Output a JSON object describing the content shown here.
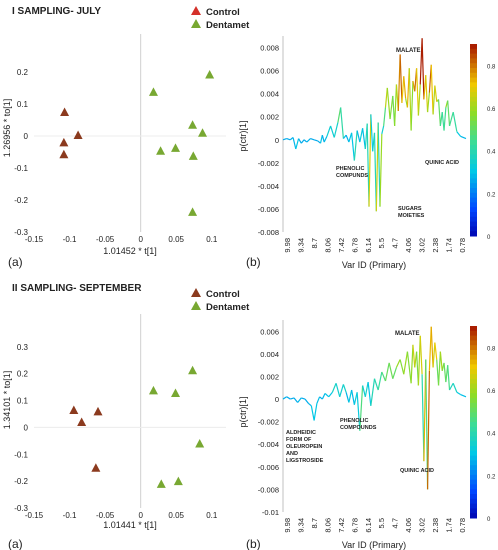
{
  "chart_data": [
    {
      "panel": "I",
      "type": "scatter",
      "title": "I SAMPLING- JULY",
      "xlabel": "1.01452 * t[1]",
      "ylabel": "1.26956 * to[1]",
      "xlim": [
        -0.15,
        0.12
      ],
      "ylim": [
        -0.3,
        0.3
      ],
      "xticks": [
        "-0.15",
        "-0.1",
        "-0.05",
        "0",
        "0.05",
        "0.1"
      ],
      "yticks": [
        "0.2",
        "0.1",
        "0",
        "-0.1",
        "-0.2",
        "-0.3"
      ],
      "panel_label": "(a)",
      "legend": [
        "Control",
        "Dentamet"
      ],
      "series": [
        {
          "name": "Control",
          "color": "#8B3A1E",
          "points": [
            [
              -0.107,
              0.075
            ],
            [
              -0.088,
              0.003
            ],
            [
              -0.108,
              -0.02
            ],
            [
              -0.108,
              -0.057
            ]
          ]
        },
        {
          "name": "Dentamet",
          "color": "#78A832",
          "points": [
            [
              0.018,
              0.138
            ],
            [
              0.097,
              0.192
            ],
            [
              0.073,
              0.035
            ],
            [
              0.049,
              -0.037
            ],
            [
              0.028,
              -0.046
            ],
            [
              0.074,
              -0.062
            ],
            [
              0.087,
              0.01
            ],
            [
              0.073,
              -0.237
            ]
          ]
        }
      ]
    },
    {
      "panel": "I",
      "type": "line",
      "xlabel": "Var ID (Primary)",
      "ylabel": "p(ctr)[1]",
      "xticks": [
        "9.98",
        "9.34",
        "8.7",
        "8.06",
        "7.42",
        "6.78",
        "6.14",
        "5.5",
        "4.7",
        "4.06",
        "3.02",
        "2.38",
        "1.74",
        "0.78"
      ],
      "yticks": [
        "0.008",
        "0.006",
        "0.004",
        "0.002",
        "0",
        "-0.002",
        "-0.004",
        "-0.006",
        "-0.008"
      ],
      "ylim": [
        -0.008,
        0.009
      ],
      "colorbar_ticks": [
        "0.8",
        "0.6",
        "0.4",
        "0.2",
        "0"
      ],
      "panel_label": "(b)",
      "annotations": [
        "MALATE",
        "PHENOLIC COMPUNDS",
        "SUGARS MOIETIES",
        "QUINIC ACID"
      ],
      "x": [
        0,
        0.02,
        0.04,
        0.055,
        0.07,
        0.085,
        0.1,
        0.115,
        0.13,
        0.15,
        0.17,
        0.19,
        0.205,
        0.215,
        0.225,
        0.24,
        0.26,
        0.28,
        0.3,
        0.315,
        0.33,
        0.345,
        0.36,
        0.375,
        0.39,
        0.405,
        0.42,
        0.435,
        0.45,
        0.46,
        0.47,
        0.48,
        0.49,
        0.5,
        0.51,
        0.52,
        0.53,
        0.54,
        0.55,
        0.56,
        0.57,
        0.585,
        0.6,
        0.61,
        0.62,
        0.63,
        0.64,
        0.65,
        0.66,
        0.67,
        0.68,
        0.69,
        0.7,
        0.71,
        0.72,
        0.73,
        0.74,
        0.75,
        0.76,
        0.77,
        0.78,
        0.79,
        0.8,
        0.81,
        0.82,
        0.83,
        0.84,
        0.85,
        0.86,
        0.87,
        0.88,
        0.89,
        0.9,
        0.91,
        0.93,
        0.95,
        0.97,
        1.0
      ],
      "values": [
        0,
        0.0001,
        0,
        0.0002,
        -0.0008,
        0.0001,
        -0.0003,
        0,
        -0.0002,
        0.0001,
        0,
        -0.0001,
        -0.0003,
        0.0004,
        -0.0002,
        0.0003,
        0.0012,
        0.0002,
        0.0015,
        0.0028,
        0.0001,
        0.0004,
        -0.0002,
        0.0006,
        -0.0018,
        0.0008,
        -0.0002,
        0.001,
        -0.0008,
        0.0014,
        -0.0058,
        0.0022,
        -0.001,
        0.0006,
        -0.0062,
        0.0015,
        -0.0058,
        0.0005,
        0.0012,
        0.0028,
        0.0045,
        0.0018,
        0.0038,
        0.0012,
        0.0048,
        0.0025,
        0.0074,
        0.0032,
        0.0055,
        0.0036,
        0.0028,
        0.0062,
        0.0008,
        0.0051,
        0.0042,
        0.0062,
        0.0021,
        0.0048,
        0.0088,
        0.0035,
        0.0056,
        0.0024,
        0.0041,
        0.0065,
        0.0022,
        0.0047,
        0.0033,
        0.0035,
        0.0012,
        0.0024,
        0.0008,
        0.0028,
        0.0034,
        0.0012,
        0.0024,
        0.0007,
        0.0003,
        0.0001
      ]
    },
    {
      "panel": "II",
      "type": "scatter",
      "title": "II SAMPLING- SEPTEMBER",
      "xlabel": "1.01441 * t[1]",
      "ylabel": "1.34101 * to[1]",
      "xlim": [
        -0.15,
        0.12
      ],
      "ylim": [
        -0.3,
        0.4
      ],
      "xticks": [
        "-0.15",
        "-0.1",
        "-0.05",
        "0",
        "0.05",
        "0.1"
      ],
      "yticks": [
        "0.3",
        "0.2",
        "0.1",
        "0",
        "-0.1",
        "-0.2",
        "-0.3"
      ],
      "panel_label": "(a)",
      "legend": [
        "Control",
        "Dentamet"
      ],
      "series": [
        {
          "name": "Control",
          "color": "#8B3A1E",
          "points": [
            [
              -0.094,
              0.065
            ],
            [
              -0.06,
              0.06
            ],
            [
              -0.083,
              0.02
            ],
            [
              -0.063,
              -0.15
            ]
          ]
        },
        {
          "name": "Dentamet",
          "color": "#78A832",
          "points": [
            [
              0.073,
              0.213
            ],
            [
              0.018,
              0.138
            ],
            [
              0.049,
              0.128
            ],
            [
              0.083,
              -0.06
            ],
            [
              0.029,
              -0.21
            ],
            [
              0.053,
              -0.2
            ]
          ]
        }
      ]
    },
    {
      "panel": "II",
      "type": "line",
      "xlabel": "Var ID (Primary)",
      "ylabel": "p(ctr)[1]",
      "xticks": [
        "9.98",
        "9.34",
        "8.7",
        "8.06",
        "7.42",
        "6.78",
        "6.14",
        "5.5",
        "4.7",
        "4.06",
        "3.02",
        "2.38",
        "1.74",
        "0.78"
      ],
      "yticks": [
        "0.006",
        "0.004",
        "0.002",
        "0",
        "-0.002",
        "-0.004",
        "-0.006",
        "-0.008",
        "-0.01"
      ],
      "ylim": [
        -0.01,
        0.007
      ],
      "colorbar_ticks": [
        "0.8",
        "0.6",
        "0.4",
        "0.2",
        "0"
      ],
      "panel_label": "(b)",
      "annotations": [
        "MALATE",
        "ALDHEIDIC FORM OF OLEUROPEIN AND LIGSTROSIDE",
        "PHENOLIC COMPOUNDS",
        "QUINIC ACID"
      ],
      "x": [
        0,
        0.02,
        0.04,
        0.06,
        0.08,
        0.1,
        0.12,
        0.14,
        0.155,
        0.17,
        0.185,
        0.2,
        0.215,
        0.23,
        0.25,
        0.27,
        0.29,
        0.31,
        0.33,
        0.345,
        0.36,
        0.375,
        0.39,
        0.405,
        0.42,
        0.435,
        0.45,
        0.465,
        0.48,
        0.5,
        0.52,
        0.54,
        0.56,
        0.58,
        0.6,
        0.62,
        0.64,
        0.66,
        0.68,
        0.7,
        0.71,
        0.72,
        0.73,
        0.74,
        0.75,
        0.76,
        0.77,
        0.78,
        0.79,
        0.8,
        0.81,
        0.82,
        0.83,
        0.84,
        0.85,
        0.86,
        0.87,
        0.88,
        0.89,
        0.9,
        0.91,
        0.93,
        0.95,
        0.97,
        1.0
      ],
      "values": [
        0,
        0.0002,
        0,
        0.0001,
        -0.0003,
        0.0001,
        0,
        -0.0004,
        -0.0006,
        -0.0019,
        -0.0004,
        0.0002,
        0,
        0.0005,
        0.0002,
        0.0006,
        0.0014,
        0.0002,
        0.0013,
        0.0006,
        -0.0003,
        0.0008,
        -0.0005,
        0.0006,
        -0.0028,
        0.0012,
        0.0002,
        0.0015,
        -0.0006,
        0.0018,
        0.0008,
        0.0024,
        0.0016,
        0.0032,
        0.0018,
        0.0028,
        0.0035,
        0.0022,
        0.0042,
        0.0014,
        0.0048,
        0.0028,
        0.0042,
        0.0012,
        0.0056,
        0.0022,
        -0.0055,
        0.0035,
        -0.008,
        0.0025,
        0.0064,
        0.0028,
        0.005,
        0.0035,
        0.0012,
        0.0042,
        0.0025,
        0.0032,
        0.0015,
        0.003,
        0.0008,
        0.0014,
        0.0006,
        0.0004,
        0.0002
      ]
    }
  ]
}
